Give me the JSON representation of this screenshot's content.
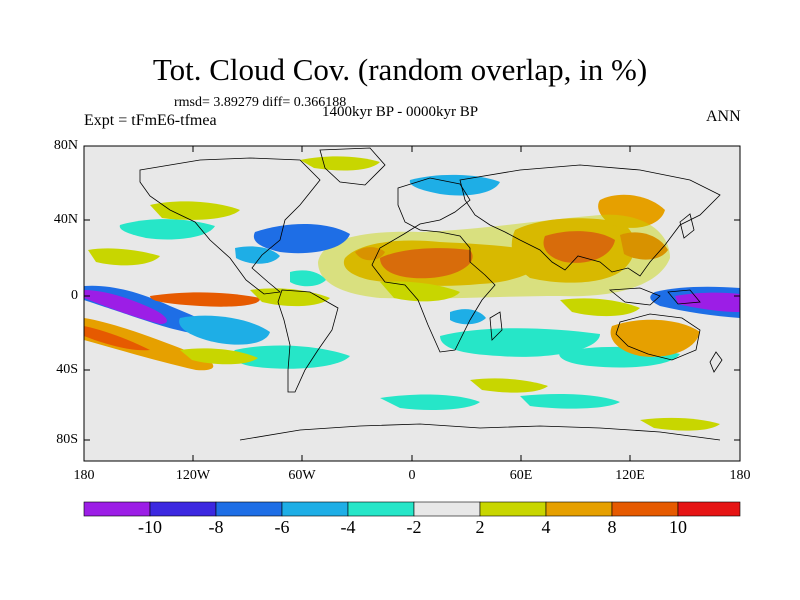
{
  "title": "Tot. Cloud Cov. (random overlap, in %)",
  "stats": "rmsd= 3.89279 diff= 0.366188",
  "period": "1400kyr BP - 0000kyr BP",
  "experiment": "Expt = tFmE6-tfmea",
  "season": "ANN",
  "axes": {
    "lat_labels": [
      "80N",
      "40N",
      "0",
      "40S",
      "80S"
    ],
    "lat_values": [
      80,
      40,
      0,
      -40,
      -80
    ],
    "lon_labels": [
      "180",
      "120W",
      "60W",
      "0",
      "60E",
      "120E",
      "180"
    ],
    "lon_values": [
      -180,
      -120,
      -60,
      0,
      60,
      120,
      180
    ]
  },
  "colorbar": {
    "labels": [
      "-10",
      "-8",
      "-6",
      "-4",
      "-2",
      "2",
      "4",
      "8",
      "10"
    ],
    "colors": [
      "#9c1ee6",
      "#3c28e0",
      "#1e6ee6",
      "#1eaee6",
      "#26e6c8",
      "#e8e8e8",
      "#c8d600",
      "#e6a000",
      "#e65a00",
      "#e61414"
    ]
  }
}
